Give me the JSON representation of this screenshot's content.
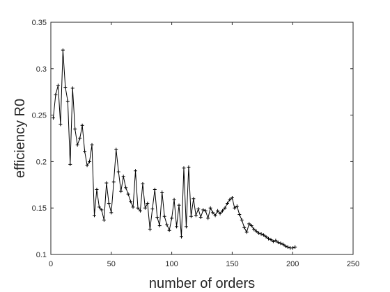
{
  "chart_data": {
    "type": "line",
    "title": "",
    "xlabel": "number of orders",
    "ylabel": "efficiency R0",
    "xlim": [
      0,
      250
    ],
    "ylim": [
      0.1,
      0.35
    ],
    "xticks": [
      "0",
      "50",
      "100",
      "150",
      "200",
      "250"
    ],
    "yticks": [
      "0.1",
      "0.15",
      "0.2",
      "0.25",
      "0.3",
      "0.35"
    ],
    "xtick_values": [
      0,
      50,
      100,
      150,
      200,
      250
    ],
    "ytick_values": [
      0.1,
      0.15,
      0.2,
      0.25,
      0.3,
      0.35
    ],
    "grid": false,
    "marker": "+",
    "line_color": "#000000",
    "series": [
      {
        "x": [
          2,
          4,
          6,
          8,
          10,
          12,
          14,
          16,
          18,
          20,
          22,
          24,
          26,
          28,
          30,
          32,
          34,
          36,
          38,
          40,
          42,
          44,
          46,
          48,
          50,
          52,
          54,
          56,
          58,
          60,
          62,
          64,
          66,
          68,
          70,
          72,
          74,
          76,
          78,
          80,
          82,
          84,
          86,
          88,
          90,
          92,
          94,
          96,
          98,
          100,
          102,
          104,
          106,
          108,
          110,
          112,
          114,
          116,
          118,
          120,
          122,
          124,
          126,
          128,
          130,
          132,
          134,
          136,
          138,
          140,
          142,
          144,
          146,
          148,
          150,
          152,
          154,
          156,
          158,
          160,
          162,
          164,
          166,
          168,
          170,
          172,
          174,
          176,
          178,
          180,
          182,
          184,
          186,
          188,
          190,
          192,
          194,
          196,
          198,
          200,
          202
        ],
        "values": [
          0.247,
          0.272,
          0.282,
          0.24,
          0.32,
          0.28,
          0.265,
          0.197,
          0.279,
          0.235,
          0.218,
          0.225,
          0.239,
          0.211,
          0.196,
          0.2,
          0.218,
          0.142,
          0.17,
          0.151,
          0.148,
          0.137,
          0.177,
          0.155,
          0.145,
          0.178,
          0.213,
          0.189,
          0.168,
          0.184,
          0.172,
          0.165,
          0.157,
          0.151,
          0.19,
          0.15,
          0.147,
          0.176,
          0.15,
          0.155,
          0.127,
          0.149,
          0.17,
          0.14,
          0.131,
          0.167,
          0.141,
          0.132,
          0.126,
          0.139,
          0.159,
          0.13,
          0.153,
          0.119,
          0.193,
          0.13,
          0.194,
          0.141,
          0.16,
          0.142,
          0.149,
          0.14,
          0.148,
          0.147,
          0.139,
          0.15,
          0.145,
          0.142,
          0.147,
          0.144,
          0.147,
          0.15,
          0.155,
          0.159,
          0.161,
          0.15,
          0.152,
          0.143,
          0.137,
          0.129,
          0.124,
          0.133,
          0.131,
          0.127,
          0.125,
          0.123,
          0.122,
          0.121,
          0.119,
          0.117,
          0.116,
          0.114,
          0.115,
          0.113,
          0.112,
          0.111,
          0.109,
          0.108,
          0.107,
          0.107,
          0.108
        ]
      }
    ]
  }
}
